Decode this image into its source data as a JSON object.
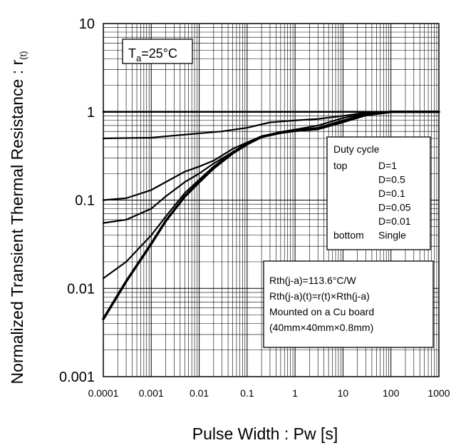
{
  "chart_data": {
    "type": "line",
    "xlabel": "Pulse Width : Pw [s]",
    "ylabel": "Normalized Transient Thermal Resistance : r",
    "ylabel_sub": "(t)",
    "xscale": "log",
    "yscale": "log",
    "xlim": [
      0.0001,
      1000
    ],
    "ylim": [
      0.001,
      10
    ],
    "grid": true,
    "x_ticks": [
      "0.0001",
      "0.001",
      "0.01",
      "0.1",
      "1",
      "10",
      "100",
      "1000"
    ],
    "y_ticks": [
      "10",
      "1",
      "0.1",
      "0.01",
      "0.001"
    ],
    "condition": {
      "main": "T",
      "sub": "a",
      "rest": "=25°C"
    },
    "legend": {
      "title": "Duty cycle",
      "rows": [
        {
          "pos": "top",
          "label": "D=1"
        },
        {
          "pos": "",
          "label": "D=0.5"
        },
        {
          "pos": "",
          "label": "D=0.1"
        },
        {
          "pos": "",
          "label": "D=0.05"
        },
        {
          "pos": "",
          "label": "D=0.01"
        },
        {
          "pos": "bottom",
          "label": "Single"
        }
      ]
    },
    "notes": [
      "Rth(j-a)=113.6°C/W",
      "Rth(j-a)(t)=r(t)×Rth(j-a)",
      "Mounted on a Cu board",
      "(40mm×40mm×0.8mm)"
    ],
    "series": [
      {
        "width": 2.5,
        "points": [
          [
            0.0001,
            1
          ],
          [
            1000,
            1
          ]
        ]
      },
      {
        "width": 2.2,
        "points": [
          [
            0.0001,
            0.5
          ],
          [
            0.001,
            0.51
          ],
          [
            0.01,
            0.57
          ],
          [
            0.03,
            0.6
          ],
          [
            0.1,
            0.66
          ],
          [
            0.3,
            0.76
          ],
          [
            1,
            0.8
          ],
          [
            3,
            0.83
          ],
          [
            10,
            0.9
          ],
          [
            30,
            0.98
          ],
          [
            100,
            1
          ],
          [
            1000,
            1
          ]
        ]
      },
      {
        "width": 2.2,
        "points": [
          [
            0.0001,
            0.1
          ],
          [
            0.0003,
            0.105
          ],
          [
            0.001,
            0.13
          ],
          [
            0.002,
            0.16
          ],
          [
            0.005,
            0.21
          ],
          [
            0.01,
            0.24
          ],
          [
            0.02,
            0.28
          ],
          [
            0.05,
            0.38
          ],
          [
            0.1,
            0.45
          ],
          [
            0.2,
            0.53
          ],
          [
            0.5,
            0.59
          ],
          [
            1,
            0.63
          ],
          [
            3,
            0.7
          ],
          [
            10,
            0.85
          ],
          [
            30,
            0.96
          ],
          [
            100,
            1
          ],
          [
            1000,
            1
          ]
        ]
      },
      {
        "width": 2.2,
        "points": [
          [
            0.0001,
            0.055
          ],
          [
            0.0003,
            0.06
          ],
          [
            0.001,
            0.08
          ],
          [
            0.002,
            0.11
          ],
          [
            0.005,
            0.16
          ],
          [
            0.01,
            0.2
          ],
          [
            0.02,
            0.26
          ],
          [
            0.05,
            0.35
          ],
          [
            0.1,
            0.44
          ],
          [
            0.2,
            0.52
          ],
          [
            0.5,
            0.59
          ],
          [
            1,
            0.62
          ],
          [
            3,
            0.66
          ],
          [
            10,
            0.8
          ],
          [
            30,
            0.94
          ],
          [
            100,
            1
          ],
          [
            1000,
            1
          ]
        ]
      },
      {
        "width": 2.2,
        "points": [
          [
            0.0001,
            0.013
          ],
          [
            0.0003,
            0.02
          ],
          [
            0.001,
            0.04
          ],
          [
            0.002,
            0.065
          ],
          [
            0.005,
            0.12
          ],
          [
            0.01,
            0.17
          ],
          [
            0.02,
            0.24
          ],
          [
            0.05,
            0.35
          ],
          [
            0.1,
            0.44
          ],
          [
            0.2,
            0.52
          ],
          [
            0.5,
            0.59
          ],
          [
            1,
            0.62
          ],
          [
            3,
            0.65
          ],
          [
            10,
            0.78
          ],
          [
            30,
            0.93
          ],
          [
            100,
            1
          ],
          [
            1000,
            1
          ]
        ]
      },
      {
        "width": 3.5,
        "points": [
          [
            0.0001,
            0.0045
          ],
          [
            0.0003,
            0.012
          ],
          [
            0.001,
            0.032
          ],
          [
            0.002,
            0.058
          ],
          [
            0.005,
            0.11
          ],
          [
            0.01,
            0.16
          ],
          [
            0.02,
            0.23
          ],
          [
            0.05,
            0.34
          ],
          [
            0.1,
            0.43
          ],
          [
            0.2,
            0.52
          ],
          [
            0.5,
            0.58
          ],
          [
            1,
            0.61
          ],
          [
            3,
            0.64
          ],
          [
            10,
            0.77
          ],
          [
            30,
            0.92
          ],
          [
            100,
            1
          ],
          [
            1000,
            1
          ]
        ]
      }
    ]
  }
}
